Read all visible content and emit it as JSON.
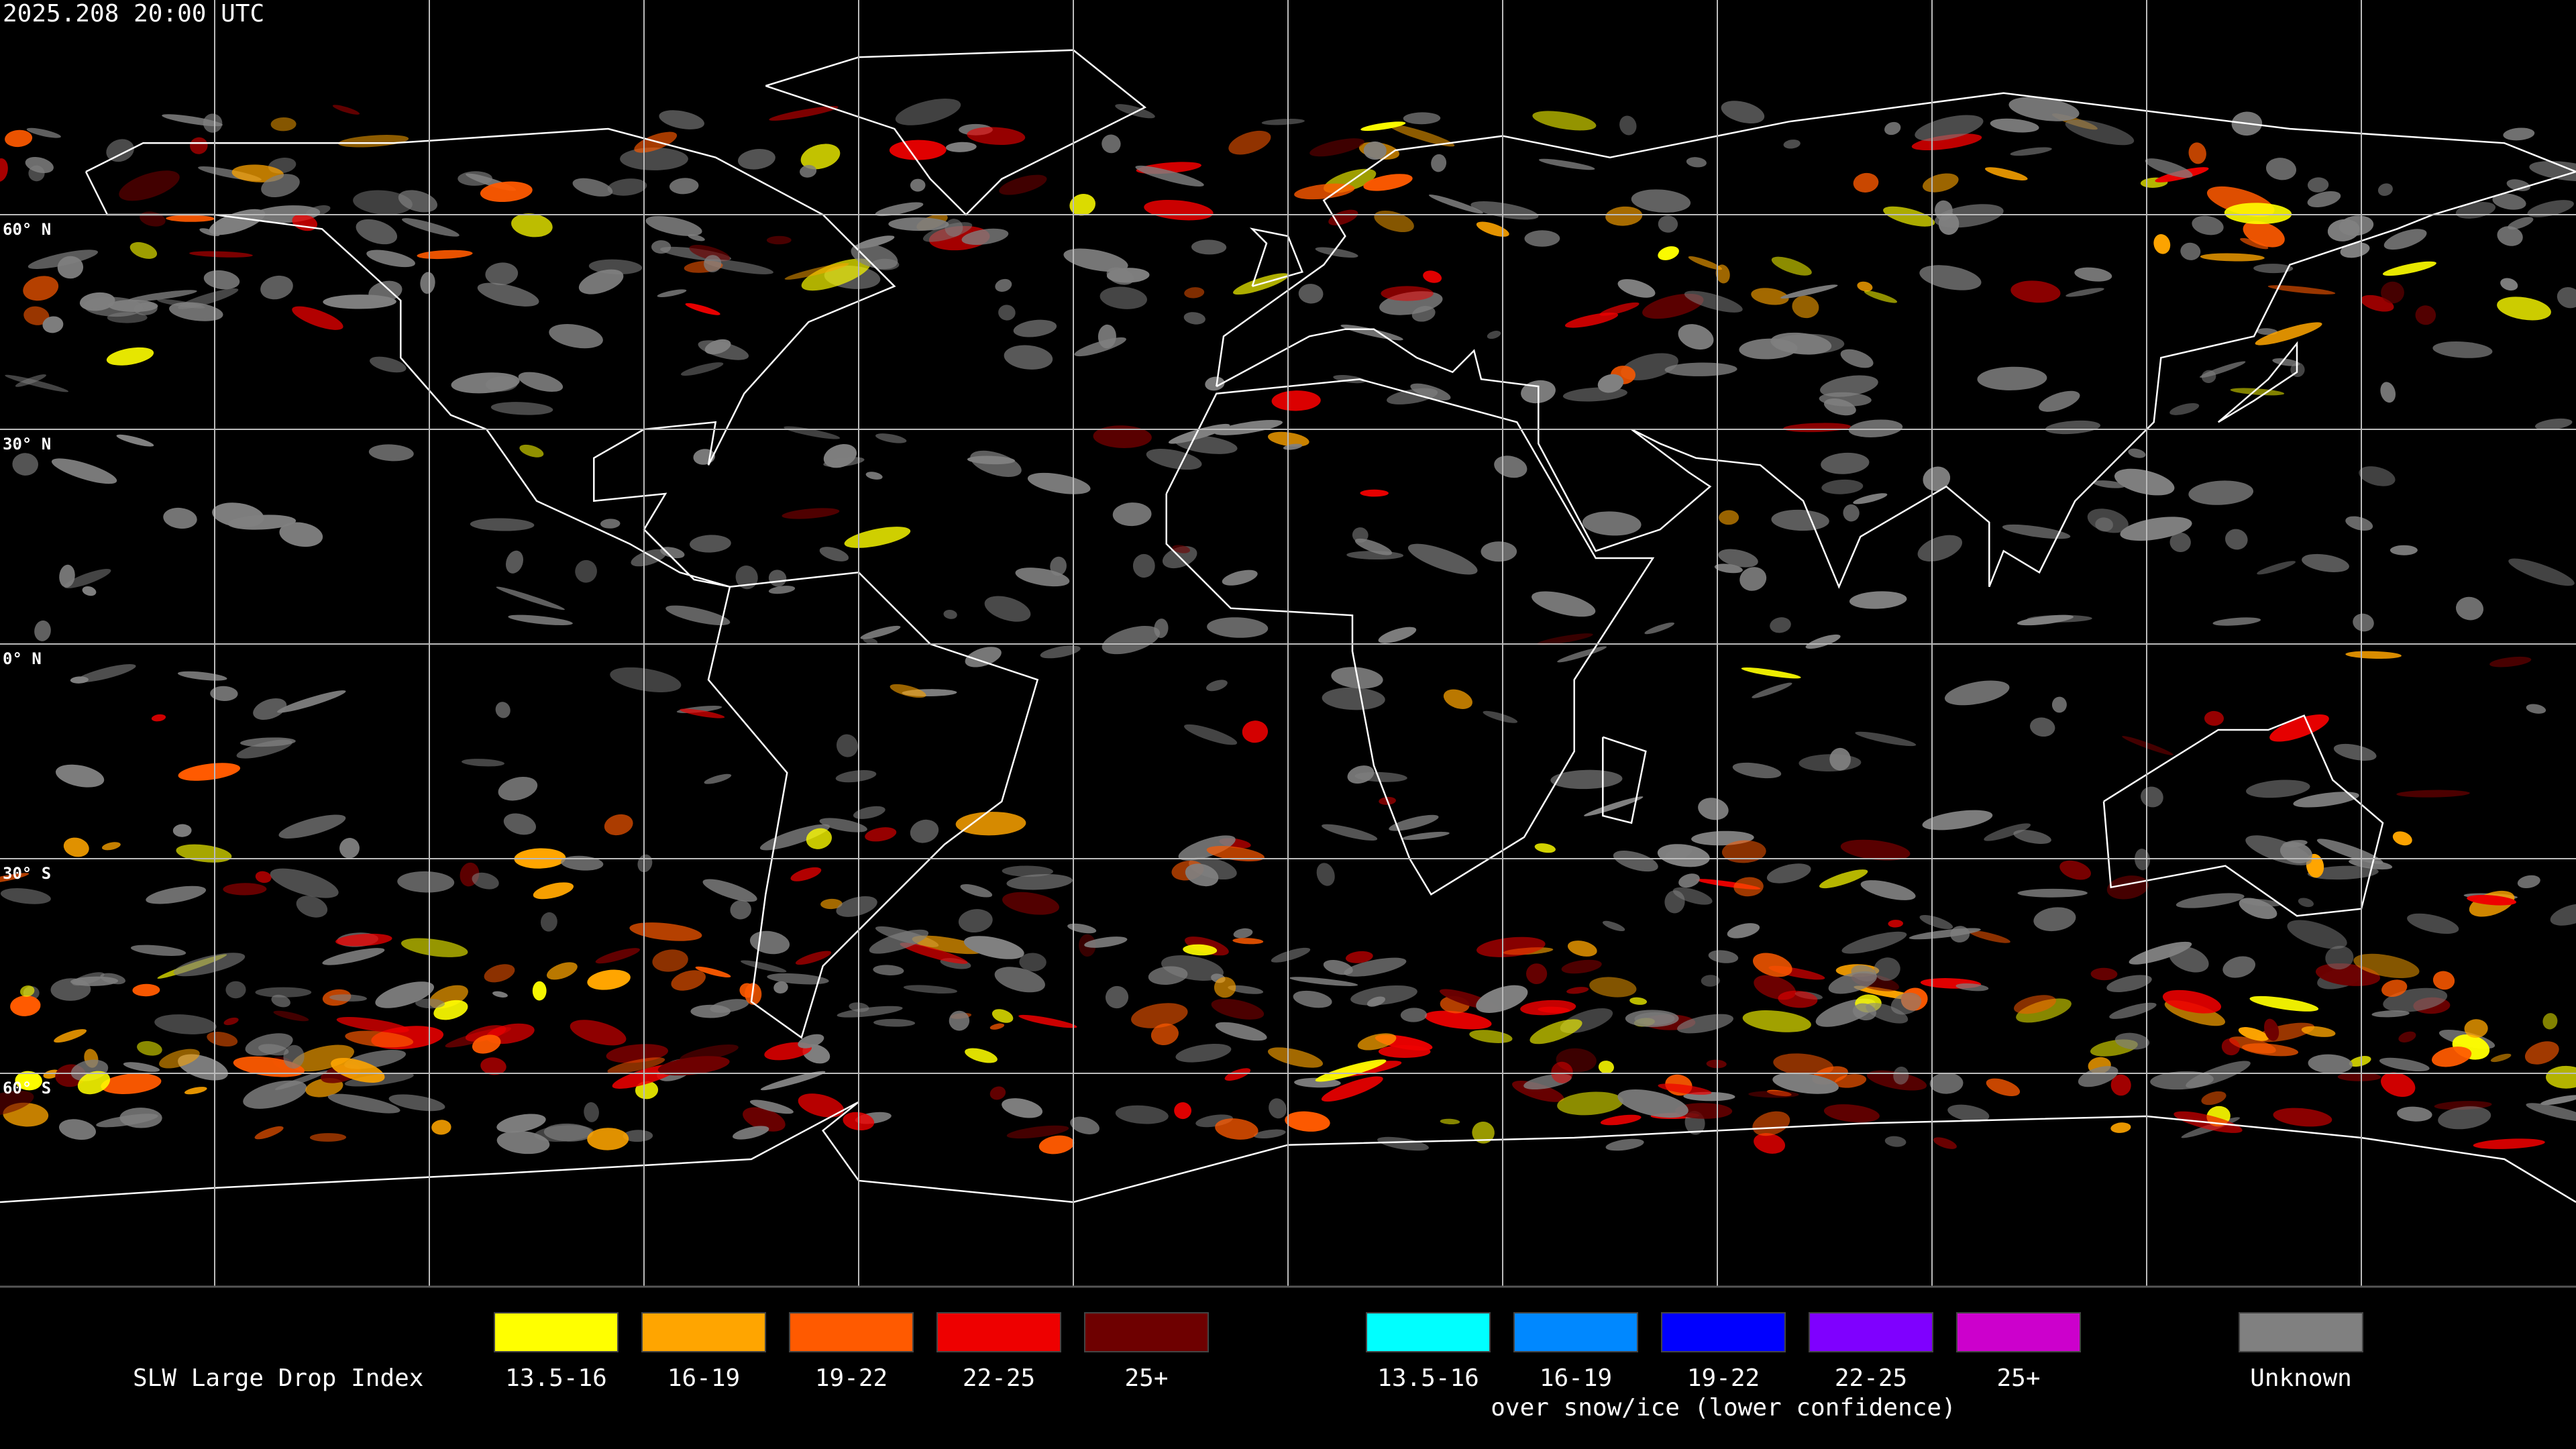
{
  "header": {
    "timestamp": "2025.208 20:00 UTC"
  },
  "map": {
    "latitude_labels": [
      "60° N",
      "30° N",
      "0° N",
      "30° S",
      "60° S"
    ]
  },
  "legend": {
    "title": "SLW Large Drop Index",
    "groups": [
      {
        "items": [
          {
            "label": "13.5-16",
            "color": "#ffff00"
          },
          {
            "label": "16-19",
            "color": "#ffa500"
          },
          {
            "label": "19-22",
            "color": "#ff5a00"
          },
          {
            "label": "22-25",
            "color": "#ee0000"
          },
          {
            "label": "25+",
            "color": "#6e0000"
          }
        ]
      },
      {
        "caption": "over snow/ice (lower confidence)",
        "items": [
          {
            "label": "13.5-16",
            "color": "#00ffff"
          },
          {
            "label": "16-19",
            "color": "#0088ff"
          },
          {
            "label": "19-22",
            "color": "#0000ff"
          },
          {
            "label": "22-25",
            "color": "#7f00ff"
          },
          {
            "label": "25+",
            "color": "#cc00cc"
          }
        ]
      },
      {
        "items": [
          {
            "label": "Unknown",
            "color": "#808080"
          }
        ]
      }
    ]
  }
}
